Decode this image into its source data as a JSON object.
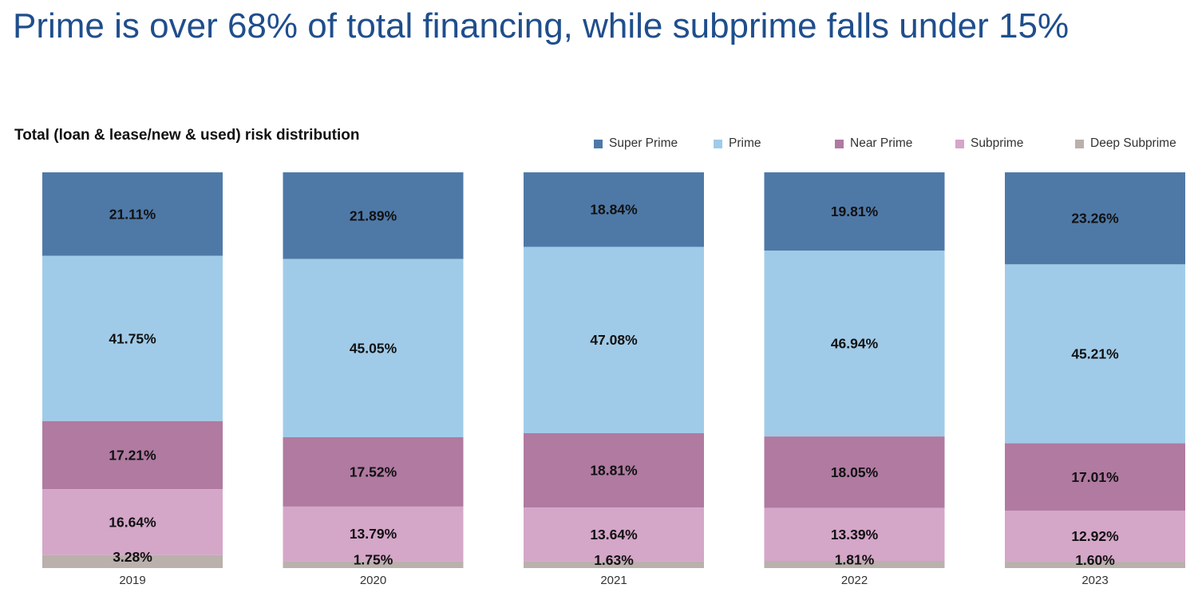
{
  "headline": "Prime is over 68% of total financing, while subprime falls under 15%",
  "chart_data": {
    "type": "bar",
    "stacked": true,
    "title": "Total (loan & lease/new & used) risk distribution",
    "xlabel": "",
    "ylabel": "",
    "categories": [
      "2019",
      "2020",
      "2021",
      "2022",
      "2023"
    ],
    "series": [
      {
        "name": "Super Prime",
        "color": "#4e79a7",
        "values": [
          21.11,
          21.89,
          18.84,
          19.81,
          23.26
        ],
        "labels": [
          "21.11%",
          "21.89%",
          "18.84%",
          "19.81%",
          "23.26%"
        ]
      },
      {
        "name": "Prime",
        "color": "#a0cbe8",
        "values": [
          41.75,
          45.05,
          47.08,
          46.94,
          45.21
        ],
        "labels": [
          "41.75%",
          "45.05%",
          "47.08%",
          "46.94%",
          "45.21%"
        ]
      },
      {
        "name": "Near Prime",
        "color": "#b07aa1",
        "values": [
          17.21,
          17.52,
          18.81,
          18.05,
          17.01
        ],
        "labels": [
          "17.21%",
          "17.52%",
          "18.81%",
          "18.05%",
          "17.01%"
        ]
      },
      {
        "name": "Subprime",
        "color": "#d4a6c8",
        "values": [
          16.64,
          13.79,
          13.64,
          13.39,
          12.92
        ],
        "labels": [
          "16.64%",
          "13.79%",
          "13.64%",
          "13.39%",
          "12.92%"
        ]
      },
      {
        "name": "Deep Subprime",
        "color": "#bab0ac",
        "values": [
          3.28,
          1.75,
          1.63,
          1.81,
          1.6
        ],
        "labels": [
          "3.28%",
          "1.75%",
          "1.63%",
          "1.81%",
          "1.60%"
        ]
      }
    ],
    "legend_position": "top-right",
    "grid": false
  }
}
